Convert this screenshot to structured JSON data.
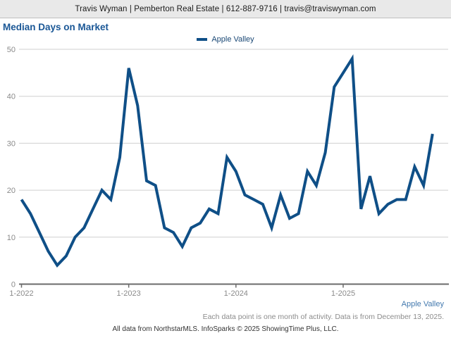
{
  "header": {
    "text": "Travis Wyman | Pemberton Real Estate | 612-887-9716 | travis@traviswyman.com"
  },
  "title": "Median Days on Market",
  "legend": {
    "label": "Apple Valley"
  },
  "footer": {
    "series_link": "Apple Valley",
    "note": "Each data point is one month of activity. Data is from December 13, 2025.",
    "attribution": "All data from NorthstarMLS. InfoSparks © 2025 ShowingTime Plus, LLC."
  },
  "colors": {
    "series_line": "#0f4f87",
    "title_text": "#1a5796",
    "footer_link": "#4379ae",
    "grid": "#cfcfcf",
    "axis": "#6b6b6b",
    "axis_text": "#8a8a8a",
    "header_bg": "#e9e9e9"
  },
  "chart_data": {
    "type": "line",
    "title": "Median Days on Market",
    "ylabel": "",
    "xlabel": "",
    "ylim": [
      0,
      50
    ],
    "grid": true,
    "legend_position": "top-center",
    "y_ticks": [
      0,
      10,
      20,
      30,
      40,
      50
    ],
    "x_tick_labels": [
      "1-2022",
      "1-2023",
      "1-2024",
      "1-2025"
    ],
    "x_tick_indices": [
      0,
      12,
      24,
      36
    ],
    "x": [
      "1-2022",
      "2-2022",
      "3-2022",
      "4-2022",
      "5-2022",
      "6-2022",
      "7-2022",
      "8-2022",
      "9-2022",
      "10-2022",
      "11-2022",
      "12-2022",
      "1-2023",
      "2-2023",
      "3-2023",
      "4-2023",
      "5-2023",
      "6-2023",
      "7-2023",
      "8-2023",
      "9-2023",
      "10-2023",
      "11-2023",
      "12-2023",
      "1-2024",
      "2-2024",
      "3-2024",
      "4-2024",
      "5-2024",
      "6-2024",
      "7-2024",
      "8-2024",
      "9-2024",
      "10-2024",
      "11-2024",
      "12-2024",
      "1-2025",
      "2-2025",
      "3-2025",
      "4-2025",
      "5-2025",
      "6-2025",
      "7-2025",
      "8-2025",
      "9-2025",
      "10-2025",
      "11-2025"
    ],
    "series": [
      {
        "name": "Apple Valley",
        "color": "#0f4f87",
        "values": [
          18,
          15,
          11,
          7,
          4,
          6,
          10,
          12,
          16,
          20,
          18,
          27,
          46,
          38,
          22,
          21,
          12,
          11,
          8,
          12,
          13,
          16,
          15,
          27,
          24,
          19,
          18,
          17,
          12,
          19,
          14,
          15,
          24,
          21,
          28,
          42,
          45,
          48,
          16,
          23,
          15,
          17,
          18,
          18,
          25,
          21,
          32
        ]
      }
    ]
  }
}
